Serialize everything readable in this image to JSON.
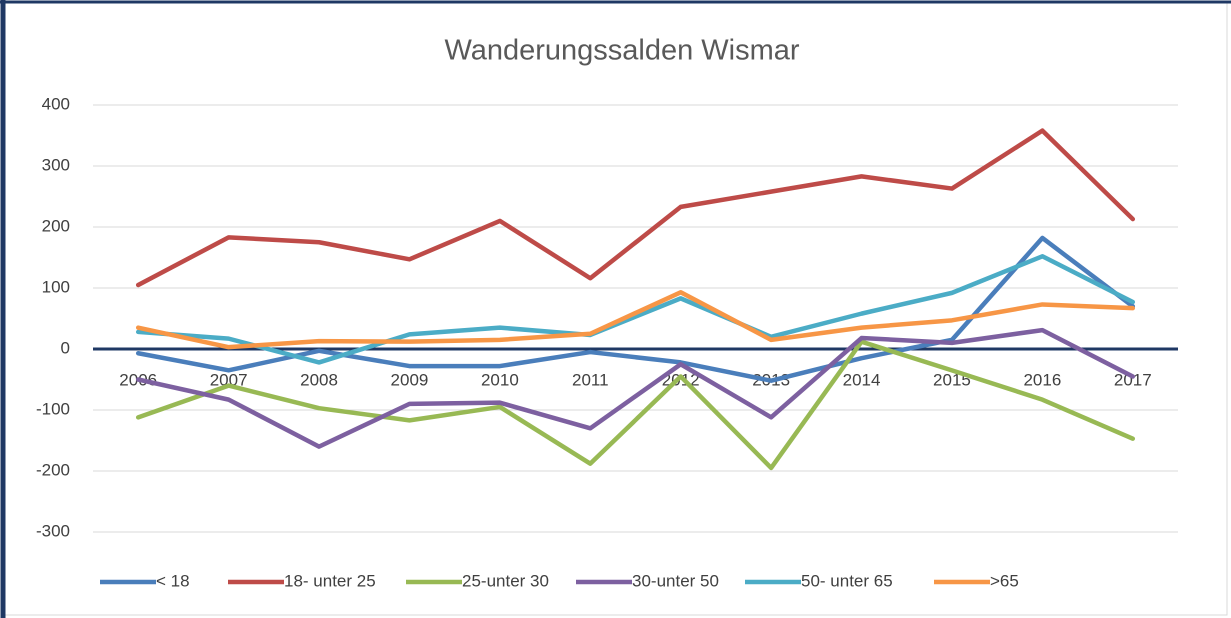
{
  "chart_data": {
    "type": "line",
    "title": "Wanderungssalden Wismar",
    "categories": [
      "2006",
      "2007",
      "2008",
      "2009",
      "2010",
      "2011",
      "2012",
      "2013",
      "2014",
      "2015",
      "2016",
      "2017"
    ],
    "series": [
      {
        "name": "< 18",
        "color": "#4a7ebb",
        "values": [
          -7,
          -35,
          -3,
          -28,
          -28,
          -5,
          -22,
          -52,
          -15,
          15,
          182,
          70
        ]
      },
      {
        "name": "18- unter 25",
        "color": "#be4b48",
        "values": [
          105,
          183,
          175,
          147,
          210,
          116,
          233,
          258,
          283,
          263,
          358,
          213
        ]
      },
      {
        "name": "25-unter 30",
        "color": "#98b954",
        "values": [
          -112,
          -60,
          -97,
          -117,
          -95,
          -188,
          -45,
          -195,
          12,
          -35,
          -83,
          -147
        ]
      },
      {
        "name": "30-unter 50",
        "color": "#7d60a0",
        "values": [
          -50,
          -83,
          -160,
          -90,
          -88,
          -130,
          -25,
          -112,
          18,
          10,
          31,
          -45
        ]
      },
      {
        "name": "50- unter 65",
        "color": "#4bacc6",
        "values": [
          28,
          17,
          -22,
          24,
          35,
          23,
          83,
          20,
          58,
          92,
          152,
          77
        ]
      },
      {
        "name": ">65",
        "color": "#f79646",
        "values": [
          35,
          3,
          13,
          12,
          15,
          25,
          93,
          15,
          35,
          47,
          73,
          67
        ]
      }
    ],
    "ylim": [
      -300,
      400
    ],
    "yticks": [
      400,
      300,
      200,
      100,
      0,
      -100,
      -200,
      -300
    ],
    "grid": true,
    "legend": "bottom"
  }
}
